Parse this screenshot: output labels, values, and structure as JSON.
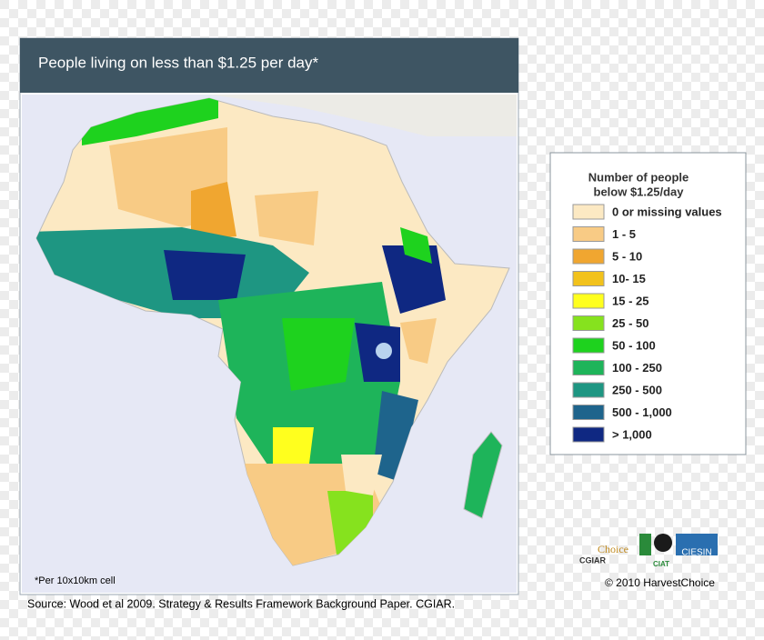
{
  "title": "People living on less than $1.25 per day*",
  "legend": {
    "title_lines": [
      "Number of people",
      "below $1.25/day"
    ],
    "items": [
      {
        "label": "0 or missing values",
        "color": "#fce9c3"
      },
      {
        "label": "1 - 5",
        "color": "#f8cb85"
      },
      {
        "label": "5 - 10",
        "color": "#f0a630"
      },
      {
        "label": "10- 15",
        "color": "#f2c21c"
      },
      {
        "label": "15 - 25",
        "color": "#ffff1e"
      },
      {
        "label": "25 - 50",
        "color": "#86e21e"
      },
      {
        "label": "50 - 100",
        "color": "#1ed21e"
      },
      {
        "label": "100 - 250",
        "color": "#1eb45a"
      },
      {
        "label": "250 - 500",
        "color": "#1e9682"
      },
      {
        "label": "500 - 1,000",
        "color": "#1e648c"
      },
      {
        "label": "> 1,000",
        "color": "#0f2882"
      }
    ]
  },
  "footnote": "*Per 10x10km cell",
  "source": "Source:  Wood et al 2009. Strategy & Results Framework Background Paper. CGIAR.",
  "copyright": "© 2010 HarvestChoice",
  "logos": [
    "CGIAR",
    "Choice",
    "CIESIN",
    "CIAT"
  ]
}
